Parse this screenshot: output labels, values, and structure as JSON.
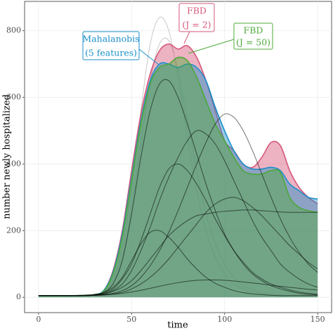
{
  "chart_data": {
    "type": "line",
    "x_label": "time",
    "y_label": "number newly hospitalized",
    "x": [
      0,
      5,
      10,
      15,
      20,
      25,
      30,
      35,
      40,
      45,
      50,
      55,
      60,
      65,
      70,
      75,
      80,
      85,
      90,
      95,
      100,
      105,
      110,
      115,
      120,
      125,
      130,
      135,
      140,
      145,
      150
    ],
    "xlim": [
      -7.5,
      157.5
    ],
    "ylim": [
      -46,
      888
    ],
    "xticks": [
      0,
      50,
      100,
      150
    ],
    "yticks": [
      0,
      200,
      400,
      600,
      800
    ],
    "grid": true,
    "series": [
      {
        "color": "#c8c8c8",
        "values": [
          5,
          5,
          5,
          5,
          5,
          6,
          8,
          18,
          50,
          150,
          330,
          560,
          760,
          840,
          800,
          660,
          480,
          320,
          200,
          120,
          70,
          40,
          25,
          15,
          10,
          7,
          6,
          5,
          5,
          5,
          5
        ]
      },
      {
        "color": "#c8c8c8",
        "values": [
          5,
          5,
          5,
          5,
          5,
          6,
          8,
          15,
          40,
          120,
          270,
          460,
          650,
          760,
          770,
          680,
          530,
          380,
          250,
          160,
          100,
          60,
          35,
          22,
          14,
          10,
          7,
          6,
          5,
          5,
          5
        ]
      },
      {
        "color": "#d6577a",
        "fill": true,
        "values": [
          5,
          5,
          5,
          5,
          5,
          6,
          8,
          20,
          80,
          200,
          380,
          550,
          670,
          740,
          760,
          745,
          755,
          720,
          650,
          560,
          470,
          440,
          400,
          390,
          420,
          465,
          455,
          380,
          330,
          300,
          280
        ]
      },
      {
        "color": "#1b8fc8",
        "fill": true,
        "values": [
          5,
          5,
          5,
          5,
          5,
          6,
          8,
          20,
          75,
          190,
          360,
          530,
          650,
          700,
          700,
          690,
          700,
          690,
          650,
          570,
          500,
          440,
          400,
          385,
          385,
          390,
          380,
          340,
          320,
          300,
          295
        ]
      },
      {
        "color": "#4da83a",
        "fill": true,
        "values": [
          5,
          5,
          5,
          5,
          5,
          6,
          8,
          18,
          70,
          180,
          350,
          520,
          640,
          690,
          700,
          720,
          710,
          660,
          590,
          520,
          470,
          420,
          380,
          370,
          370,
          380,
          375,
          300,
          270,
          260,
          255
        ]
      },
      {
        "color": "#000000",
        "values": [
          5,
          5,
          5,
          5,
          5,
          6,
          8,
          15,
          40,
          110,
          250,
          420,
          560,
          640,
          650,
          600,
          520,
          430,
          340,
          260,
          190,
          140,
          100,
          70,
          50,
          35,
          25,
          18,
          12,
          9,
          7
        ]
      },
      {
        "color": "#000000",
        "values": [
          5,
          5,
          5,
          5,
          5,
          6,
          7,
          10,
          20,
          40,
          80,
          140,
          210,
          290,
          360,
          420,
          470,
          500,
          490,
          460,
          410,
          350,
          290,
          230,
          180,
          140,
          100,
          75,
          55,
          40,
          30
        ]
      },
      {
        "color": "#000000",
        "values": [
          5,
          5,
          5,
          5,
          5,
          5,
          6,
          7,
          10,
          15,
          25,
          40,
          60,
          85,
          115,
          150,
          185,
          220,
          255,
          280,
          295,
          300,
          290,
          270,
          245,
          215,
          185,
          155,
          130,
          105,
          85
        ]
      },
      {
        "color": "#000000",
        "values": [
          5,
          5,
          5,
          5,
          5,
          6,
          8,
          14,
          30,
          60,
          110,
          160,
          195,
          200,
          180,
          150,
          115,
          85,
          60,
          42,
          30,
          20,
          14,
          10,
          8,
          6,
          5,
          5,
          5,
          5,
          5
        ]
      },
      {
        "color": "#000000",
        "values": [
          5,
          5,
          5,
          5,
          5,
          6,
          7,
          10,
          18,
          30,
          50,
          80,
          115,
          150,
          185,
          210,
          230,
          245,
          250,
          255,
          258,
          260,
          262,
          262,
          260,
          258,
          256,
          255,
          255,
          255,
          255
        ]
      },
      {
        "color": "#000000",
        "values": [
          5,
          5,
          5,
          5,
          5,
          6,
          7,
          12,
          25,
          55,
          100,
          170,
          250,
          330,
          385,
          400,
          380,
          340,
          290,
          235,
          185,
          140,
          105,
          75,
          55,
          40,
          30,
          22,
          16,
          12,
          9
        ]
      },
      {
        "color": "#000000",
        "values": [
          5,
          5,
          5,
          5,
          5,
          5,
          6,
          7,
          9,
          12,
          16,
          21,
          27,
          33,
          39,
          44,
          48,
          51,
          52,
          52,
          51,
          49,
          46,
          43,
          40,
          36,
          33,
          30,
          27,
          24,
          22
        ]
      },
      {
        "color": "#000000",
        "values": [
          5,
          5,
          5,
          5,
          5,
          5,
          6,
          8,
          12,
          20,
          35,
          60,
          95,
          140,
          195,
          260,
          330,
          400,
          465,
          520,
          550,
          540,
          500,
          440,
          370,
          300,
          235,
          180,
          135,
          100,
          75
        ]
      }
    ],
    "annotations": [
      {
        "lines": [
          "FBD",
          "(J = 2)"
        ],
        "color": "#d6577a"
      },
      {
        "lines": [
          "Mahalanobis",
          "(5 features)"
        ],
        "color": "#1b8fc8"
      },
      {
        "lines": [
          "FBD",
          "(J = 50)"
        ],
        "color": "#4da83a"
      }
    ]
  }
}
